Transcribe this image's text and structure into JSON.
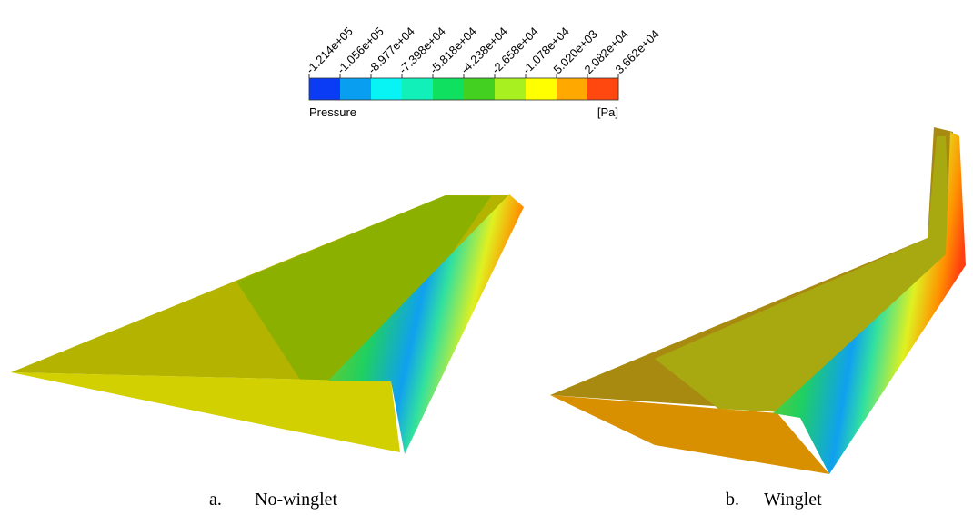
{
  "colorbar": {
    "ticks": [
      "-1.214e+05",
      "-1.056e+05",
      "-8.977e+04",
      "-7.398e+04",
      "-5.818e+04",
      "-4.238e+04",
      "-2.658e+04",
      "-1.078e+04",
      "5.020e+03",
      "2.082e+04",
      "3.662e+04"
    ],
    "colors": [
      "#0a3cf5",
      "#0a9ef0",
      "#08f4f4",
      "#10f0b8",
      "#10e060",
      "#44d020",
      "#a8f020",
      "#ffff00",
      "#ffa800",
      "#ff4810"
    ],
    "title": "Pressure",
    "unit": "[Pa]"
  },
  "panels": [
    {
      "label": "a.",
      "caption": "No-winglet"
    },
    {
      "label": "b.",
      "caption": "Winglet"
    }
  ]
}
